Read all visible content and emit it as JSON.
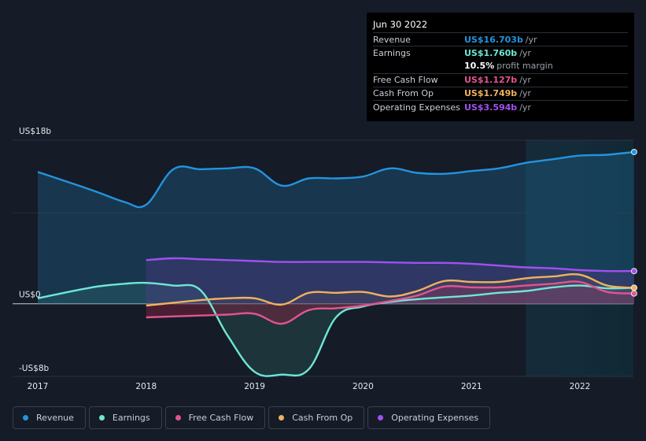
{
  "tooltip": {
    "date": "Jun 30 2022",
    "rows": [
      {
        "label": "Revenue",
        "value": "US$16.703b",
        "unit": "/yr",
        "color": "#2394df"
      },
      {
        "label": "Earnings",
        "value": "US$1.760b",
        "unit": "/yr",
        "color": "#6ee7d5"
      },
      {
        "label": "",
        "value": "10.5%",
        "unit": "profit margin",
        "color": "#ffffff"
      },
      {
        "label": "Free Cash Flow",
        "value": "US$1.127b",
        "unit": "/yr",
        "color": "#e2548f"
      },
      {
        "label": "Cash From Op",
        "value": "US$1.749b",
        "unit": "/yr",
        "color": "#f0b25e"
      },
      {
        "label": "Operating Expenses",
        "value": "US$3.594b",
        "unit": "/yr",
        "color": "#a150f0"
      }
    ]
  },
  "legend": [
    {
      "label": "Revenue",
      "color": "#2394df"
    },
    {
      "label": "Earnings",
      "color": "#6ee7d5"
    },
    {
      "label": "Free Cash Flow",
      "color": "#e2548f"
    },
    {
      "label": "Cash From Op",
      "color": "#f0b25e"
    },
    {
      "label": "Operating Expenses",
      "color": "#a150f0"
    }
  ],
  "chart_data": {
    "type": "line",
    "ylim": [
      -8,
      18
    ],
    "y_tick_labels": [
      {
        "value": 18,
        "label": "US$18b"
      },
      {
        "value": 0,
        "label": "US$0"
      },
      {
        "value": -8,
        "label": "-US$8b"
      }
    ],
    "x_ticks": [
      2017,
      2018,
      2019,
      2020,
      2021,
      2022
    ],
    "xlim": [
      2016.75,
      2022.5
    ],
    "highlight_start": 2021.5,
    "series": [
      {
        "name": "Revenue",
        "color": "#2394df",
        "fill": true,
        "points": [
          [
            2017.0,
            14.5
          ],
          [
            2017.5,
            12.5
          ],
          [
            2017.8,
            11.2
          ],
          [
            2018.0,
            10.9
          ],
          [
            2018.25,
            14.8
          ],
          [
            2018.5,
            14.8
          ],
          [
            2018.75,
            14.9
          ],
          [
            2019.0,
            14.9
          ],
          [
            2019.25,
            13.0
          ],
          [
            2019.5,
            13.8
          ],
          [
            2019.75,
            13.8
          ],
          [
            2020.0,
            14.0
          ],
          [
            2020.25,
            14.9
          ],
          [
            2020.5,
            14.4
          ],
          [
            2020.75,
            14.3
          ],
          [
            2021.0,
            14.6
          ],
          [
            2021.25,
            14.9
          ],
          [
            2021.5,
            15.5
          ],
          [
            2021.75,
            15.9
          ],
          [
            2022.0,
            16.3
          ],
          [
            2022.25,
            16.4
          ],
          [
            2022.5,
            16.703
          ]
        ]
      },
      {
        "name": "Earnings",
        "color": "#6ee7d5",
        "fill": true,
        "points": [
          [
            2017.0,
            0.6
          ],
          [
            2017.5,
            1.8
          ],
          [
            2017.8,
            2.2
          ],
          [
            2018.0,
            2.3
          ],
          [
            2018.25,
            2.0
          ],
          [
            2018.5,
            1.5
          ],
          [
            2018.75,
            -3.5
          ],
          [
            2019.0,
            -7.5
          ],
          [
            2019.25,
            -7.8
          ],
          [
            2019.5,
            -7.2
          ],
          [
            2019.75,
            -1.5
          ],
          [
            2020.0,
            -0.3
          ],
          [
            2020.25,
            0.2
          ],
          [
            2020.5,
            0.5
          ],
          [
            2020.75,
            0.7
          ],
          [
            2021.0,
            0.9
          ],
          [
            2021.25,
            1.2
          ],
          [
            2021.5,
            1.4
          ],
          [
            2021.75,
            1.8
          ],
          [
            2022.0,
            2.0
          ],
          [
            2022.25,
            1.7
          ],
          [
            2022.5,
            1.76
          ]
        ]
      },
      {
        "name": "Free Cash Flow",
        "color": "#e2548f",
        "fill": true,
        "points": [
          [
            2018.0,
            -1.5
          ],
          [
            2018.5,
            -1.3
          ],
          [
            2018.75,
            -1.2
          ],
          [
            2019.0,
            -1.1
          ],
          [
            2019.25,
            -2.2
          ],
          [
            2019.5,
            -0.7
          ],
          [
            2019.75,
            -0.5
          ],
          [
            2020.0,
            -0.2
          ],
          [
            2020.25,
            0.3
          ],
          [
            2020.5,
            0.9
          ],
          [
            2020.75,
            1.9
          ],
          [
            2021.0,
            1.8
          ],
          [
            2021.25,
            1.8
          ],
          [
            2021.5,
            2.0
          ],
          [
            2021.75,
            2.2
          ],
          [
            2022.0,
            2.4
          ],
          [
            2022.25,
            1.3
          ],
          [
            2022.5,
            1.127
          ]
        ]
      },
      {
        "name": "Cash From Op",
        "color": "#f0b25e",
        "fill": true,
        "points": [
          [
            2018.0,
            -0.2
          ],
          [
            2018.5,
            0.4
          ],
          [
            2018.75,
            0.6
          ],
          [
            2019.0,
            0.6
          ],
          [
            2019.25,
            -0.1
          ],
          [
            2019.5,
            1.2
          ],
          [
            2019.75,
            1.2
          ],
          [
            2020.0,
            1.3
          ],
          [
            2020.25,
            0.8
          ],
          [
            2020.5,
            1.4
          ],
          [
            2020.75,
            2.5
          ],
          [
            2021.0,
            2.4
          ],
          [
            2021.25,
            2.4
          ],
          [
            2021.5,
            2.8
          ],
          [
            2021.75,
            3.0
          ],
          [
            2022.0,
            3.2
          ],
          [
            2022.25,
            2.0
          ],
          [
            2022.5,
            1.749
          ]
        ]
      },
      {
        "name": "Operating Expenses",
        "color": "#a150f0",
        "fill": true,
        "points": [
          [
            2018.0,
            4.8
          ],
          [
            2018.25,
            5.0
          ],
          [
            2018.5,
            4.9
          ],
          [
            2018.75,
            4.8
          ],
          [
            2019.0,
            4.7
          ],
          [
            2019.25,
            4.6
          ],
          [
            2019.5,
            4.6
          ],
          [
            2019.75,
            4.6
          ],
          [
            2020.0,
            4.6
          ],
          [
            2020.5,
            4.5
          ],
          [
            2020.75,
            4.5
          ],
          [
            2021.0,
            4.4
          ],
          [
            2021.25,
            4.2
          ],
          [
            2021.5,
            4.0
          ],
          [
            2021.75,
            3.9
          ],
          [
            2022.0,
            3.7
          ],
          [
            2022.25,
            3.6
          ],
          [
            2022.5,
            3.594
          ]
        ]
      }
    ]
  }
}
